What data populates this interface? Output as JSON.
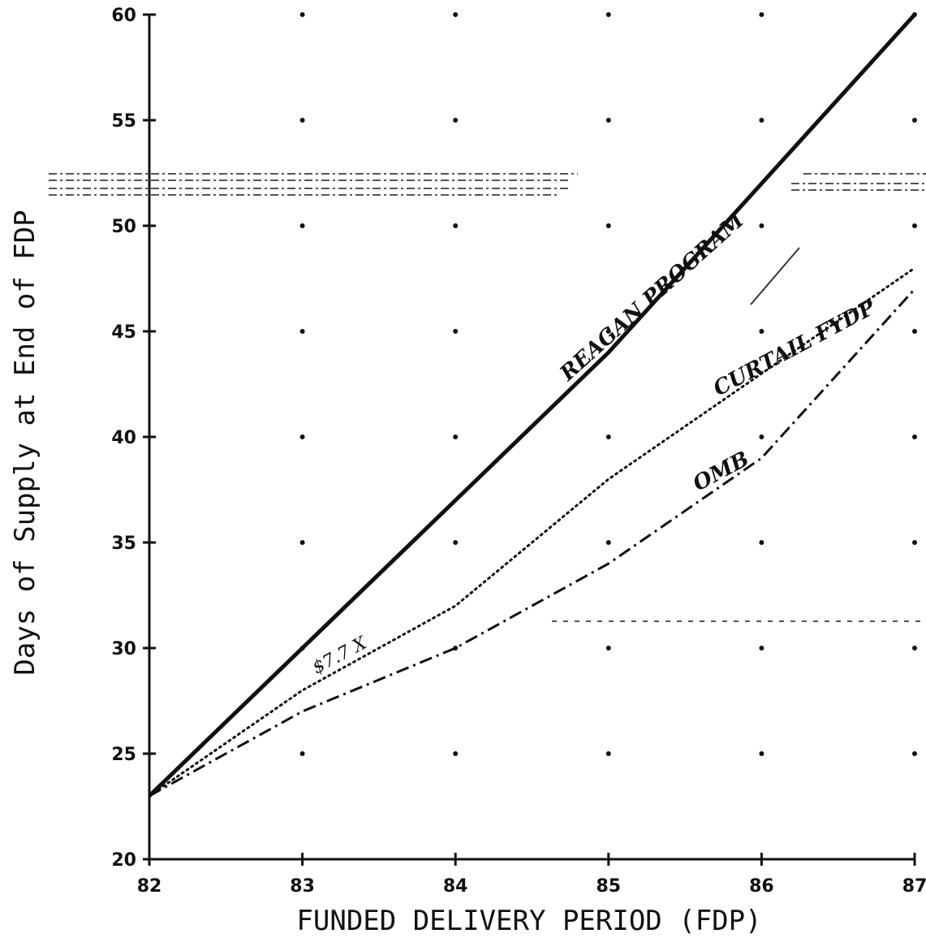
{
  "chart_data": {
    "type": "line",
    "xlabel": "FUNDED DELIVERY PERIOD (FDP)",
    "ylabel": "Days of Supply at End of FDP",
    "x": [
      82,
      83,
      84,
      85,
      86,
      87
    ],
    "xlim": [
      82,
      87
    ],
    "ylim": [
      20,
      60
    ],
    "x_ticks": [
      "82",
      "83",
      "84",
      "85",
      "86",
      "87"
    ],
    "y_ticks": [
      "20",
      "25",
      "30",
      "35",
      "40",
      "45",
      "50",
      "55",
      "60"
    ],
    "grid": "dots",
    "series": [
      {
        "name": "REAGAN PROGRAM",
        "style": "solid-thick",
        "values": [
          23,
          30,
          37,
          44,
          52,
          60
        ]
      },
      {
        "name": "CURTAIL FYDP",
        "style": "dotted",
        "values": [
          23,
          28,
          32,
          38,
          43,
          48
        ]
      },
      {
        "name": "OMB",
        "style": "dash-dot",
        "values": [
          23,
          27,
          30,
          34,
          39,
          47
        ]
      }
    ],
    "annotations": [
      {
        "text": "REAGAN PROGRAM",
        "series": 0
      },
      {
        "text": "CURTAIL FYDP",
        "series": 1
      },
      {
        "text": "OMB",
        "series": 2
      },
      {
        "text": "$7.7 X"
      }
    ]
  }
}
